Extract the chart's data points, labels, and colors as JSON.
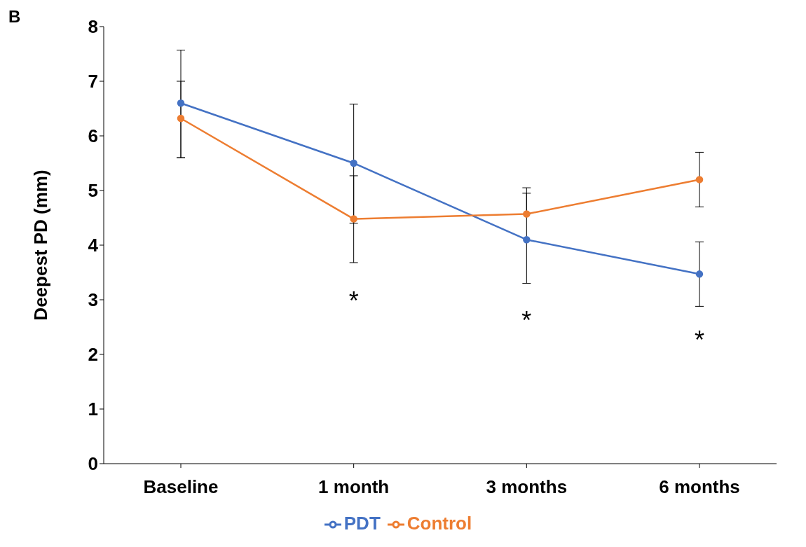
{
  "chart_data": {
    "type": "line",
    "ylabel": "Deepest PD (mm)",
    "categories": [
      "Baseline",
      "1 month",
      "3 months",
      "6 months"
    ],
    "series": [
      {
        "name": "PDT",
        "color": "#4472c4",
        "values": [
          6.6,
          5.5,
          4.1,
          3.47
        ],
        "errors": [
          [
            5.6,
            7.57
          ],
          [
            4.4,
            6.58
          ],
          [
            3.3,
            4.95
          ],
          [
            2.88,
            4.06
          ]
        ]
      },
      {
        "name": "Control",
        "color": "#ed7d31",
        "values": [
          6.32,
          4.48,
          4.57,
          5.2
        ],
        "errors": [
          [
            5.6,
            7.0
          ],
          [
            3.68,
            5.27
          ],
          [
            4.57,
            5.05
          ],
          [
            4.7,
            5.7
          ]
        ]
      }
    ],
    "ylim": [
      0,
      8
    ],
    "yticks": [
      0,
      1,
      2,
      3,
      4,
      5,
      6,
      7,
      8
    ],
    "grid": false,
    "legend": "bottom",
    "marker": "circle",
    "line_style": "solid",
    "annotations": [
      "B",
      "*",
      "*",
      "*"
    ]
  }
}
